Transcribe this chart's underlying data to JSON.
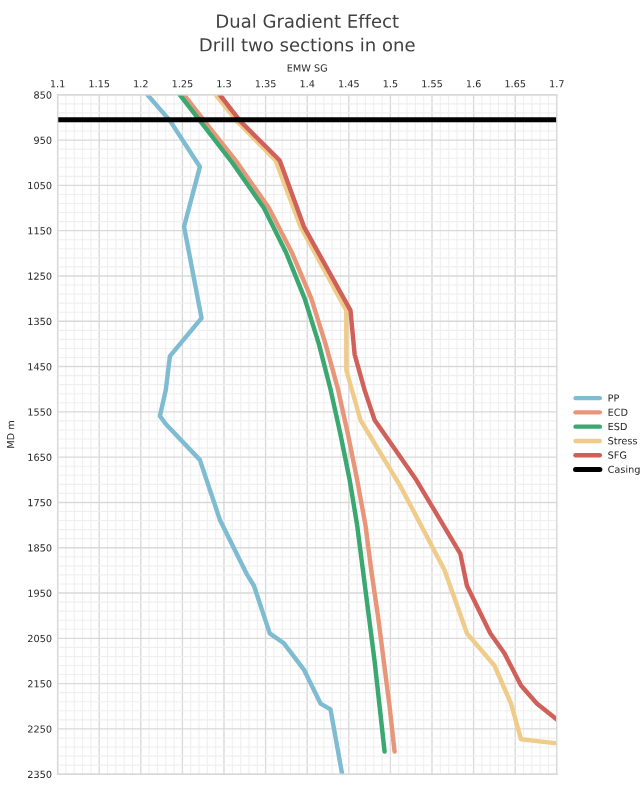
{
  "chart_data": {
    "type": "line",
    "title": "Dual Gradient Effect",
    "subtitle": "Drill two sections in one",
    "xlabel": "EMW SG",
    "ylabel": "MD m",
    "xlim": [
      1.1,
      1.7
    ],
    "xticks": [
      1.1,
      1.15,
      1.2,
      1.25,
      1.3,
      1.35,
      1.4,
      1.45,
      1.5,
      1.55,
      1.6,
      1.65,
      1.7
    ],
    "ylim": [
      2350,
      850
    ],
    "yticks": [
      850,
      950,
      1050,
      1150,
      1250,
      1350,
      1450,
      1550,
      1650,
      1750,
      1850,
      1950,
      2050,
      2150,
      2250,
      2350
    ],
    "grid": true,
    "legend": "right",
    "series": [
      {
        "name": "PP",
        "color": "#7fbcd2",
        "x": [
          1.208,
          1.235,
          1.271,
          1.252,
          1.273,
          1.235,
          1.23,
          1.223,
          1.23,
          1.271,
          1.295,
          1.327,
          1.336,
          1.355,
          1.372,
          1.396,
          1.416,
          1.428,
          1.442
        ],
        "values": [
          850,
          907,
          1009,
          1141,
          1343,
          1427,
          1502,
          1559,
          1577,
          1656,
          1788,
          1907,
          1934,
          2039,
          2061,
          2119,
          2194,
          2207,
          2350
        ]
      },
      {
        "name": "ECD",
        "color": "#e8967a",
        "x": [
          1.252,
          1.276,
          1.316,
          1.354,
          1.382,
          1.405,
          1.422,
          1.437,
          1.449,
          1.46,
          1.47,
          1.477,
          1.485,
          1.492,
          1.499,
          1.505
        ],
        "values": [
          850,
          907,
          1000,
          1100,
          1200,
          1300,
          1400,
          1500,
          1600,
          1700,
          1800,
          1900,
          2000,
          2100,
          2200,
          2300
        ]
      },
      {
        "name": "ESD",
        "color": "#3aa870",
        "x": [
          1.247,
          1.271,
          1.31,
          1.348,
          1.375,
          1.397,
          1.414,
          1.428,
          1.44,
          1.451,
          1.46,
          1.467,
          1.474,
          1.481,
          1.487,
          1.493
        ],
        "values": [
          850,
          907,
          1000,
          1100,
          1200,
          1300,
          1400,
          1500,
          1600,
          1700,
          1800,
          1900,
          2000,
          2100,
          2200,
          2300
        ]
      },
      {
        "name": "Stress",
        "color": "#f0cc8a",
        "x": [
          1.29,
          1.315,
          1.362,
          1.392,
          1.447,
          1.447,
          1.447,
          1.464,
          1.512,
          1.565,
          1.592,
          1.625,
          1.645,
          1.657,
          1.7
        ],
        "values": [
          850,
          907,
          995,
          1141,
          1326,
          1392,
          1458,
          1568,
          1714,
          1899,
          2039,
          2110,
          2194,
          2273,
          2282
        ]
      },
      {
        "name": "SFG",
        "color": "#d0605a",
        "x": [
          1.295,
          1.319,
          1.367,
          1.396,
          1.452,
          1.457,
          1.469,
          1.481,
          1.531,
          1.584,
          1.592,
          1.62,
          1.637,
          1.657,
          1.676,
          1.7
        ],
        "values": [
          850,
          907,
          995,
          1141,
          1326,
          1423,
          1502,
          1568,
          1700,
          1863,
          1934,
          2039,
          2083,
          2154,
          2194,
          2229
        ]
      },
      {
        "name": "Casing",
        "color": "#000000",
        "x": [
          1.1,
          1.7
        ],
        "values": [
          905,
          905
        ]
      }
    ]
  }
}
